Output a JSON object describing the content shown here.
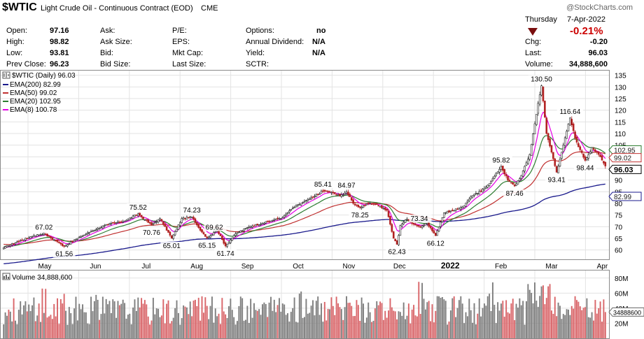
{
  "header": {
    "symbol": "$WTIC",
    "name": "Light Crude Oil - Continuous Contract (EOD)",
    "exchange": "CME",
    "watermark": "@StockCharts.com",
    "day": "Thursday",
    "date": "7-Apr-2022",
    "change_pct": "-0.21%",
    "change_color": "#cc0000",
    "quote": [
      {
        "label": "Open:",
        "value": "97.16"
      },
      {
        "label": "High:",
        "value": "98.82"
      },
      {
        "label": "Low:",
        "value": "93.81"
      },
      {
        "label": "Prev Close:",
        "value": "96.23"
      }
    ],
    "ask": [
      "Ask:",
      "Ask Size:",
      "Bid:",
      "Bid Size:"
    ],
    "fundamentals": [
      "P/E:",
      "EPS:",
      "Mkt Cap:",
      "Last Size:"
    ],
    "other": [
      {
        "label": "Options:",
        "value": "no"
      },
      {
        "label": "Annual Dividend:",
        "value": "N/A"
      },
      {
        "label": "Yield:",
        "value": "N/A"
      },
      {
        "label": "SCTR:",
        "value": ""
      }
    ],
    "right": [
      {
        "label": "Chg:",
        "value": "-0.20"
      },
      {
        "label": "Last:",
        "value": "96.03"
      },
      {
        "label": "Volume:",
        "value": "34,888,600"
      }
    ]
  },
  "chart_data": {
    "type": "candlestick",
    "legend_price": "$WTIC (Daily) 96.03",
    "legend": [
      {
        "label": "EMA(200) 82.99",
        "color": "#1a1a8c"
      },
      {
        "label": "EMA(50) 99.02",
        "color": "#c03030"
      },
      {
        "label": "EMA(20) 102.95",
        "color": "#2e7d32"
      },
      {
        "label": "EMA(8) 100.78",
        "color": "#e600e6"
      }
    ],
    "x_labels": [
      "May",
      "Jun",
      "Jul",
      "Aug",
      "Sep",
      "Oct",
      "Nov",
      "Dec",
      "2022",
      "Feb",
      "Mar",
      "Apr"
    ],
    "y_ticks": [
      60,
      65,
      70,
      75,
      80,
      85,
      90,
      95,
      100,
      105,
      110,
      115,
      120,
      125,
      130,
      135
    ],
    "ylim": [
      56,
      137
    ],
    "price_path": [
      [
        0,
        61
      ],
      [
        8,
        63.5
      ],
      [
        18,
        66.2
      ],
      [
        24,
        67.02
      ],
      [
        32,
        63.5
      ],
      [
        36,
        61.56
      ],
      [
        44,
        65
      ],
      [
        52,
        68
      ],
      [
        62,
        71
      ],
      [
        72,
        72.5
      ],
      [
        80,
        75.52
      ],
      [
        84,
        73
      ],
      [
        88,
        70.76
      ],
      [
        93,
        73.5
      ],
      [
        100,
        65.01
      ],
      [
        106,
        73.5
      ],
      [
        112,
        74.23
      ],
      [
        116,
        69.62
      ],
      [
        121,
        65.15
      ],
      [
        127,
        68.5
      ],
      [
        132,
        61.74
      ],
      [
        138,
        67
      ],
      [
        146,
        70
      ],
      [
        154,
        71.5
      ],
      [
        160,
        72.8
      ],
      [
        166,
        74
      ],
      [
        172,
        78
      ],
      [
        178,
        80.5
      ],
      [
        184,
        82.5
      ],
      [
        190,
        85.41
      ],
      [
        196,
        84.5
      ],
      [
        200,
        83.2
      ],
      [
        204,
        84.97
      ],
      [
        208,
        80
      ],
      [
        212,
        78.25
      ],
      [
        217,
        80
      ],
      [
        222,
        79.5
      ],
      [
        228,
        77
      ],
      [
        232,
        65
      ],
      [
        234,
        62.43
      ],
      [
        236,
        70.5
      ],
      [
        240,
        73.34
      ],
      [
        244,
        71
      ],
      [
        248,
        70
      ],
      [
        252,
        71.5
      ],
      [
        257,
        66.12
      ],
      [
        262,
        76
      ],
      [
        268,
        77
      ],
      [
        274,
        79
      ],
      [
        278,
        83
      ],
      [
        284,
        85.2
      ],
      [
        290,
        89.5
      ],
      [
        296,
        95.82
      ],
      [
        300,
        90
      ],
      [
        304,
        87.46
      ],
      [
        308,
        92
      ],
      [
        313,
        101
      ],
      [
        318,
        123
      ],
      [
        320,
        130.5
      ],
      [
        323,
        110
      ],
      [
        326,
        102
      ],
      [
        329,
        93.41
      ],
      [
        333,
        105
      ],
      [
        337,
        116.64
      ],
      [
        340,
        108
      ],
      [
        343,
        103
      ],
      [
        346,
        98.44
      ],
      [
        350,
        104
      ],
      [
        354,
        101
      ],
      [
        358,
        96.03
      ]
    ],
    "annotations": [
      {
        "label": "67.02",
        "i": 24,
        "y": 67.02,
        "pos": "above"
      },
      {
        "label": "61.56",
        "i": 36,
        "y": 61.56,
        "pos": "below"
      },
      {
        "label": "75.52",
        "i": 80,
        "y": 75.52,
        "pos": "above"
      },
      {
        "label": "70.76",
        "i": 88,
        "y": 70.76,
        "pos": "below"
      },
      {
        "label": "65.01",
        "i": 100,
        "y": 65.01,
        "pos": "below"
      },
      {
        "label": "74.23",
        "i": 112,
        "y": 74.23,
        "pos": "above"
      },
      {
        "label": "69.62",
        "i": 118,
        "y": 69.62,
        "pos": "right"
      },
      {
        "label": "65.15",
        "i": 121,
        "y": 65.15,
        "pos": "below"
      },
      {
        "label": "61.74",
        "i": 132,
        "y": 61.74,
        "pos": "below"
      },
      {
        "label": "85.41",
        "i": 190,
        "y": 85.41,
        "pos": "above"
      },
      {
        "label": "84.97",
        "i": 204,
        "y": 84.97,
        "pos": "above"
      },
      {
        "label": "78.25",
        "i": 212,
        "y": 78.25,
        "pos": "below"
      },
      {
        "label": "73.34",
        "i": 240,
        "y": 73.34,
        "pos": "right"
      },
      {
        "label": "62.43",
        "i": 234,
        "y": 62.43,
        "pos": "below"
      },
      {
        "label": "66.12",
        "i": 257,
        "y": 66.12,
        "pos": "below"
      },
      {
        "label": "95.82",
        "i": 296,
        "y": 95.82,
        "pos": "above"
      },
      {
        "label": "87.46",
        "i": 304,
        "y": 87.46,
        "pos": "below"
      },
      {
        "label": "130.50",
        "i": 320,
        "y": 130.5,
        "pos": "above"
      },
      {
        "label": "93.41",
        "i": 329,
        "y": 93.41,
        "pos": "below"
      },
      {
        "label": "116.64",
        "i": 337,
        "y": 116.64,
        "pos": "above"
      },
      {
        "label": "98.44",
        "i": 346,
        "y": 98.44,
        "pos": "below"
      }
    ],
    "price_boxes": [
      {
        "label": "102.95",
        "y": 102.95,
        "color": "#2e7d32",
        "bold": false
      },
      {
        "label": "99.02",
        "y": 99.02,
        "color": "#c03030",
        "bold": false
      },
      {
        "label": "96.03",
        "y": 96.03,
        "color": "#000000",
        "bold": true
      },
      {
        "label": "82.99",
        "y": 82.99,
        "color": "#1a1a8c",
        "bold": false
      }
    ],
    "volume": {
      "legend": "Volume 34,888,600",
      "y_ticks": [
        20,
        40,
        60,
        80
      ],
      "y_tick_labels": [
        "20M",
        "40M",
        "60M",
        "80M"
      ],
      "ylim": [
        0,
        90
      ],
      "last_label": "34888600",
      "last_value": 34.9
    }
  }
}
